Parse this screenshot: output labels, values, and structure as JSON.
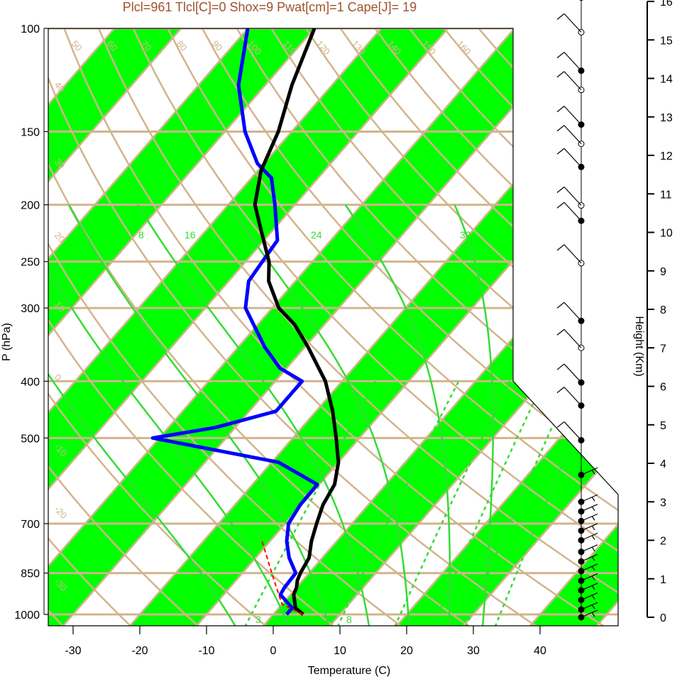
{
  "chart_data": {
    "type": "skew-t",
    "title": "Plcl=961 Tlcl[C]=0 Shox=9 Pwat[cm]=1 Cape[J]= 19",
    "xlabel": "Temperature (C)",
    "ylabel": "P (hPa)",
    "y2label": "Height (Km)",
    "x_ticks": [
      "-30",
      "-20",
      "-10",
      "0",
      "10",
      "20",
      "30",
      "40"
    ],
    "x_tick_values": [
      -30,
      -20,
      -10,
      0,
      10,
      20,
      30,
      40
    ],
    "p_ticks": [
      "100",
      "150",
      "200",
      "250",
      "300",
      "400",
      "500",
      "700",
      "850",
      "1000"
    ],
    "p_tick_values": [
      100,
      150,
      200,
      250,
      300,
      400,
      500,
      700,
      850,
      1000
    ],
    "height_ticks": [
      "0",
      "1",
      "2",
      "3",
      "4",
      "5",
      "6",
      "7",
      "8",
      "9",
      "10",
      "11",
      "12",
      "13",
      "14",
      "15",
      "16"
    ],
    "isotherm_labels": [
      {
        "text": "30",
        "value": 30
      },
      {
        "text": "20",
        "value": 20
      },
      {
        "text": "10",
        "value": 10
      },
      {
        "text": "0",
        "value": 0
      },
      {
        "text": "-10",
        "value": -10
      },
      {
        "text": "-20",
        "value": -20
      },
      {
        "text": "-30",
        "value": -30
      }
    ],
    "theta_labels": [
      "50",
      "60",
      "70",
      "80",
      "90",
      "100",
      "110",
      "120",
      "130",
      "140",
      "150",
      "160"
    ],
    "theta_left_labels": [
      "40",
      "30",
      "20",
      "10",
      "0",
      "-10",
      "-20",
      "-30"
    ],
    "mixing_ratio_labels": [
      "3",
      "8"
    ],
    "theta_e_labels": [
      "8",
      "16",
      "24",
      "32"
    ],
    "temperature": [
      {
        "p": 1000,
        "t": 4.5
      },
      {
        "p": 975,
        "t": 2.5
      },
      {
        "p": 950,
        "t": 1.5
      },
      {
        "p": 925,
        "t": 0.5
      },
      {
        "p": 900,
        "t": 0.0
      },
      {
        "p": 875,
        "t": -0.8
      },
      {
        "p": 850,
        "t": -1.3
      },
      {
        "p": 800,
        "t": -2.0
      },
      {
        "p": 750,
        "t": -3.8
      },
      {
        "p": 700,
        "t": -5.3
      },
      {
        "p": 650,
        "t": -6.8
      },
      {
        "p": 600,
        "t": -7.7
      },
      {
        "p": 550,
        "t": -10.0
      },
      {
        "p": 500,
        "t": -13.5
      },
      {
        "p": 450,
        "t": -17.5
      },
      {
        "p": 400,
        "t": -22.5
      },
      {
        "p": 350,
        "t": -29.5
      },
      {
        "p": 320,
        "t": -34.5
      },
      {
        "p": 300,
        "t": -39.0
      },
      {
        "p": 270,
        "t": -44.0
      },
      {
        "p": 250,
        "t": -46.5
      },
      {
        "p": 225,
        "t": -51.0
      },
      {
        "p": 200,
        "t": -56.0
      },
      {
        "p": 175,
        "t": -59.5
      },
      {
        "p": 150,
        "t": -62.0
      },
      {
        "p": 125,
        "t": -66.0
      },
      {
        "p": 100,
        "t": -70.0
      }
    ],
    "dewpoint": [
      {
        "p": 1000,
        "t": 2.0
      },
      {
        "p": 975,
        "t": 2.0
      },
      {
        "p": 925,
        "t": -1.5
      },
      {
        "p": 900,
        "t": -1.8
      },
      {
        "p": 850,
        "t": -2.0
      },
      {
        "p": 800,
        "t": -5.0
      },
      {
        "p": 750,
        "t": -7.5
      },
      {
        "p": 700,
        "t": -9.5
      },
      {
        "p": 650,
        "t": -10.2
      },
      {
        "p": 600,
        "t": -10.3
      },
      {
        "p": 550,
        "t": -19.0
      },
      {
        "p": 500,
        "t": -41.0
      },
      {
        "p": 480,
        "t": -33.0
      },
      {
        "p": 450,
        "t": -26.0
      },
      {
        "p": 400,
        "t": -26.0
      },
      {
        "p": 380,
        "t": -31.0
      },
      {
        "p": 350,
        "t": -36.0
      },
      {
        "p": 300,
        "t": -44.0
      },
      {
        "p": 270,
        "t": -47.0
      },
      {
        "p": 250,
        "t": -47.5
      },
      {
        "p": 230,
        "t": -48.0
      },
      {
        "p": 200,
        "t": -53.0
      },
      {
        "p": 180,
        "t": -57.0
      },
      {
        "p": 170,
        "t": -61.0
      },
      {
        "p": 150,
        "t": -67.0
      },
      {
        "p": 125,
        "t": -74.0
      },
      {
        "p": 100,
        "t": -80.0
      }
    ],
    "parcel": [
      {
        "p": 1000,
        "t": 4.5
      },
      {
        "p": 961,
        "t": 0.0
      },
      {
        "p": 900,
        "t": -3.0
      },
      {
        "p": 850,
        "t": -5.6
      },
      {
        "p": 800,
        "t": -8.3
      },
      {
        "p": 750,
        "t": -11.2
      }
    ],
    "wind_heights_km": [
      0,
      0.2,
      0.45,
      0.7,
      0.95,
      1.2,
      1.45,
      1.7,
      2.0,
      2.25,
      2.5,
      2.75,
      3.0,
      3.7,
      4.6,
      5.5,
      6.1,
      7.0,
      7.7,
      9.2,
      10.3,
      10.7,
      11.7,
      12.3,
      12.8,
      13.7,
      14.2,
      15.2,
      16.1
    ]
  }
}
